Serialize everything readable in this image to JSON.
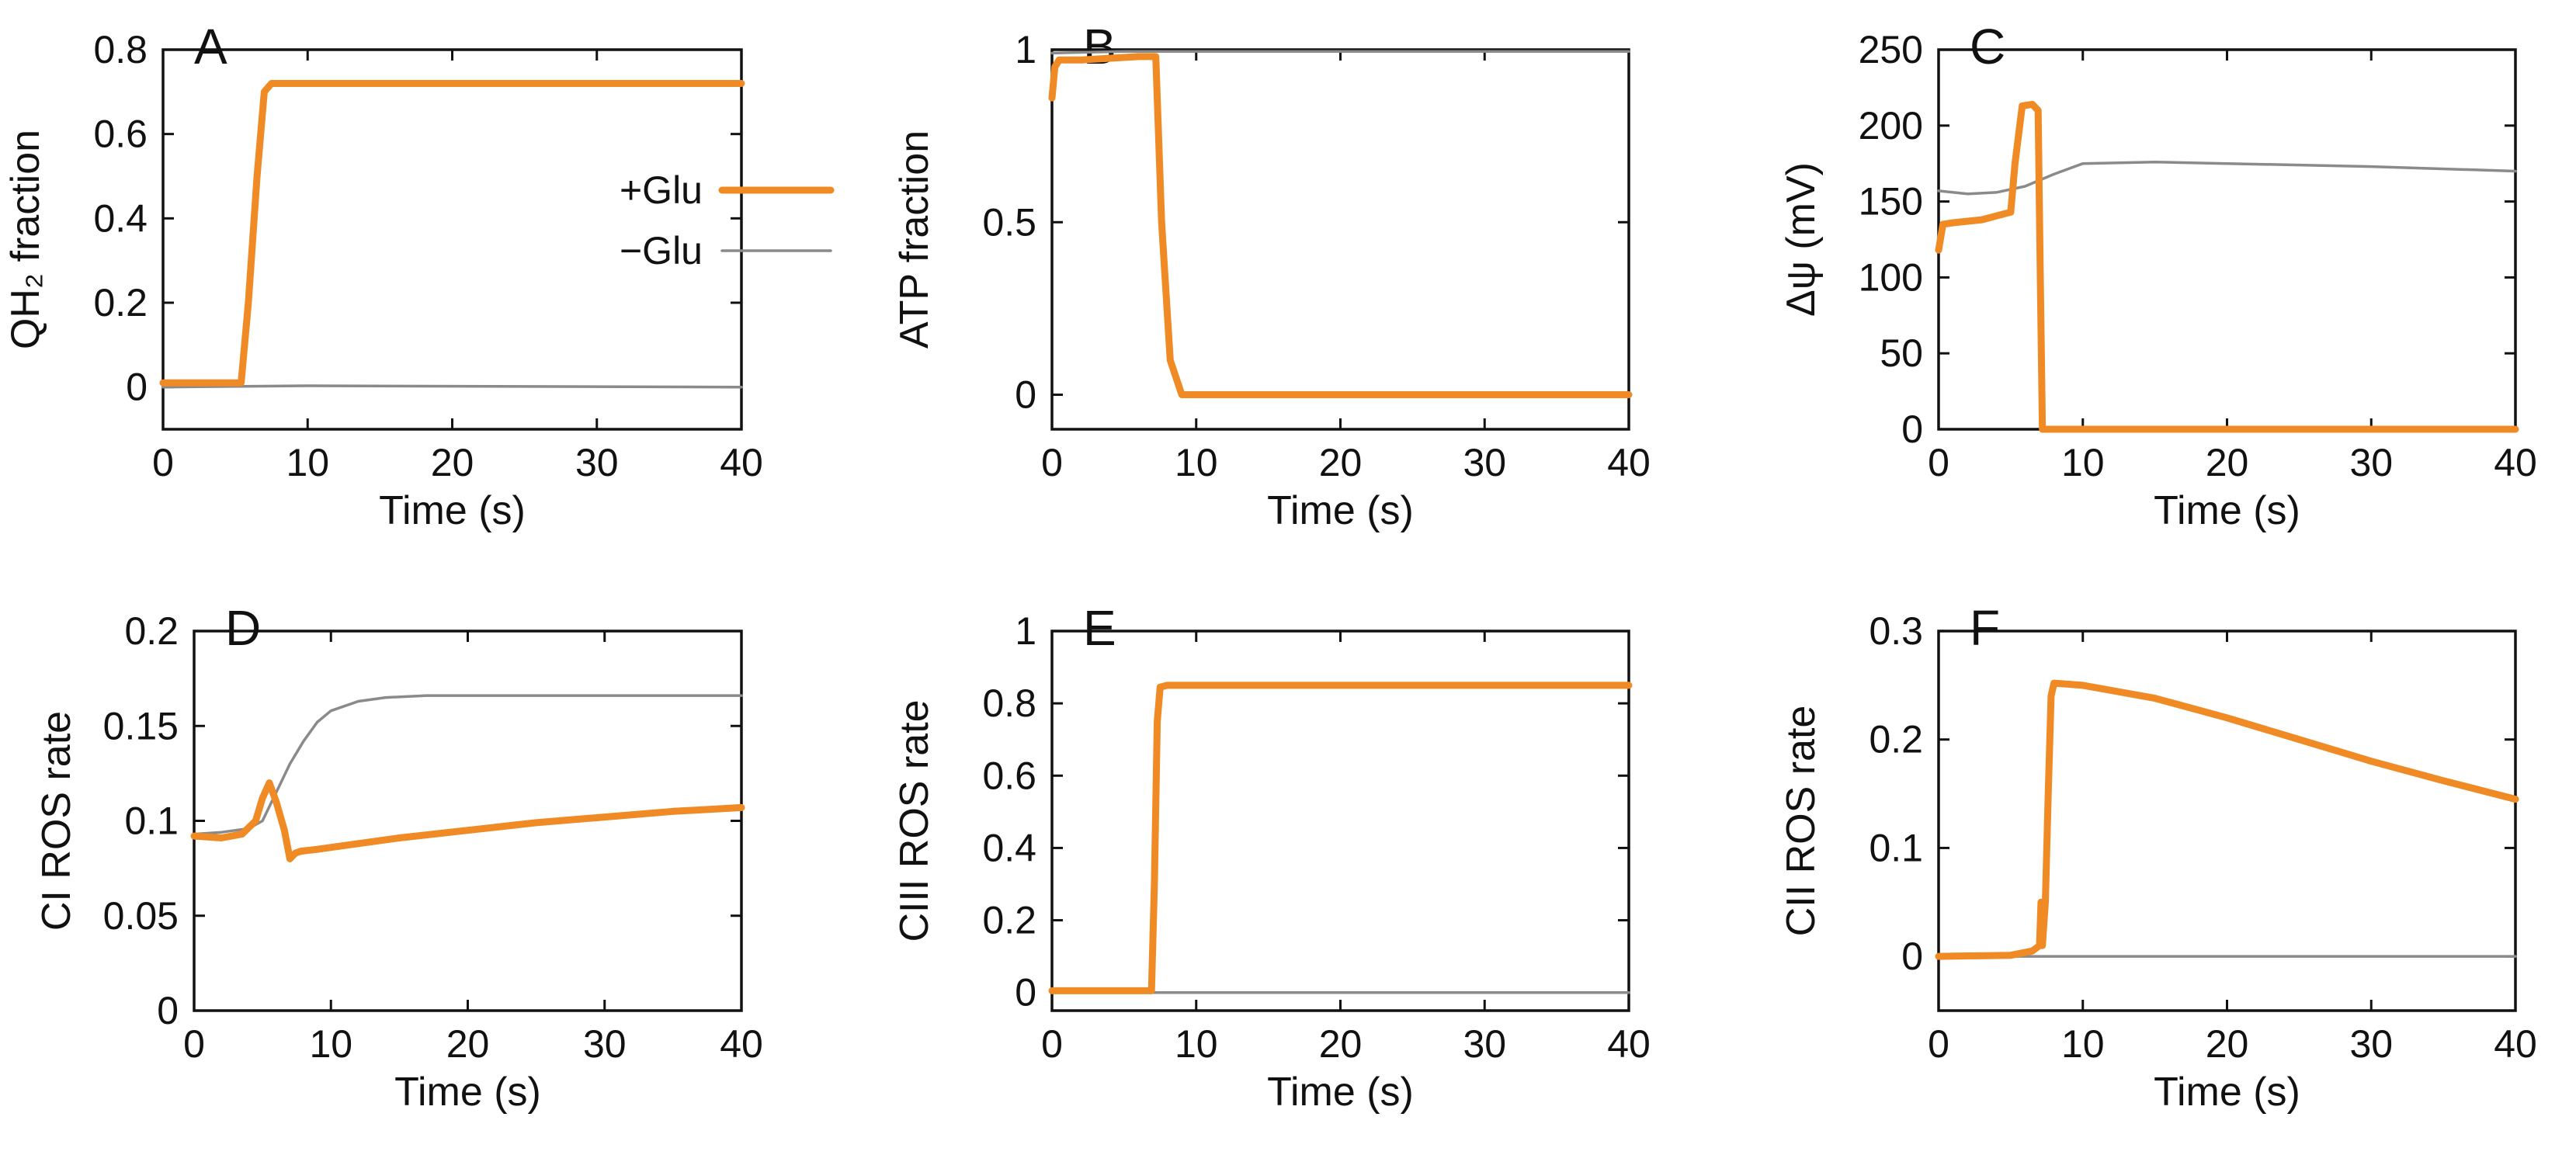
{
  "colors": {
    "glu_plus": "#f08a24",
    "glu_minus": "#8a8a8a"
  },
  "legend": {
    "glu_plus": "+Glu",
    "glu_minus": "−Glu"
  },
  "chart_data": [
    {
      "type": "line",
      "letter": "A",
      "xlabel": "Time (s)",
      "ylabel": "QH₂ fraction",
      "xlim": [
        0,
        40
      ],
      "ylim": [
        -0.1,
        0.8
      ],
      "xticks": [
        0,
        10,
        20,
        30,
        40
      ],
      "xtick_labels": [
        "0",
        "10",
        "20",
        "30",
        "40"
      ],
      "yticks": [
        0,
        0.2,
        0.4,
        0.6,
        0.8
      ],
      "ytick_labels": [
        "0",
        "0.2",
        "0.4",
        "0.6",
        "0.8"
      ],
      "series": [
        {
          "name": "+Glu",
          "x": [
            0,
            5.4,
            5.9,
            6.5,
            7,
            7.5,
            40
          ],
          "y": [
            0.01,
            0.01,
            0.2,
            0.5,
            0.7,
            0.72,
            0.72
          ]
        },
        {
          "name": "−Glu",
          "x": [
            0,
            10,
            40
          ],
          "y": [
            0.0,
            0.003,
            0.0
          ]
        }
      ]
    },
    {
      "type": "line",
      "letter": "B",
      "xlabel": "Time (s)",
      "ylabel": "ATP fraction",
      "xlim": [
        0,
        40
      ],
      "ylim": [
        -0.1,
        1.0
      ],
      "xticks": [
        0,
        10,
        20,
        30,
        40
      ],
      "xtick_labels": [
        "0",
        "10",
        "20",
        "30",
        "40"
      ],
      "yticks": [
        0,
        0.5,
        1
      ],
      "ytick_labels": [
        "0",
        "0.5",
        "1"
      ],
      "series": [
        {
          "name": "+Glu",
          "x": [
            0,
            0.2,
            0.5,
            2,
            6,
            7.2,
            7.6,
            8.2,
            9,
            10,
            40
          ],
          "y": [
            0.86,
            0.95,
            0.97,
            0.97,
            0.98,
            0.98,
            0.5,
            0.1,
            0.0,
            0.0,
            0.0
          ]
        },
        {
          "name": "−Glu",
          "x": [
            0,
            5,
            40
          ],
          "y": [
            0.99,
            0.995,
            0.995
          ]
        }
      ]
    },
    {
      "type": "line",
      "letter": "C",
      "xlabel": "Time (s)",
      "ylabel": "Δψ (mV)",
      "xlim": [
        0,
        40
      ],
      "ylim": [
        0,
        250
      ],
      "xticks": [
        0,
        10,
        20,
        30,
        40
      ],
      "xtick_labels": [
        "0",
        "10",
        "20",
        "30",
        "40"
      ],
      "yticks": [
        0,
        50,
        100,
        150,
        200,
        250
      ],
      "ytick_labels": [
        "0",
        "50",
        "100",
        "150",
        "200",
        "250"
      ],
      "series": [
        {
          "name": "+Glu",
          "x": [
            0,
            0.3,
            1,
            3,
            5,
            5.3,
            5.8,
            6.5,
            6.9,
            7.05,
            7.2,
            40
          ],
          "y": [
            118,
            135,
            136,
            138,
            143,
            175,
            213,
            214,
            210,
            100,
            0,
            0
          ]
        },
        {
          "name": "−Glu",
          "x": [
            0,
            2,
            4,
            6,
            8,
            10,
            15,
            20,
            30,
            40
          ],
          "y": [
            157,
            155,
            156,
            160,
            168,
            175,
            176,
            175,
            173,
            170
          ]
        }
      ]
    },
    {
      "type": "line",
      "letter": "D",
      "xlabel": "Time (s)",
      "ylabel": "CI ROS rate",
      "xlim": [
        0,
        40
      ],
      "ylim": [
        0,
        0.2
      ],
      "xticks": [
        0,
        10,
        20,
        30,
        40
      ],
      "xtick_labels": [
        "0",
        "10",
        "20",
        "30",
        "40"
      ],
      "yticks": [
        0,
        0.05,
        0.1,
        0.15,
        0.2
      ],
      "ytick_labels": [
        "0",
        "0.05",
        "0.1",
        "0.15",
        "0.2"
      ],
      "series": [
        {
          "name": "+Glu",
          "x": [
            0,
            2,
            3.5,
            4.5,
            5,
            5.5,
            6,
            6.6,
            7,
            7.4,
            7.8,
            9,
            12,
            15,
            20,
            25,
            30,
            35,
            40
          ],
          "y": [
            0.092,
            0.091,
            0.093,
            0.1,
            0.112,
            0.12,
            0.11,
            0.095,
            0.08,
            0.083,
            0.084,
            0.085,
            0.088,
            0.091,
            0.095,
            0.099,
            0.102,
            0.105,
            0.107
          ]
        },
        {
          "name": "−Glu",
          "x": [
            0,
            2,
            4,
            5,
            6,
            7,
            8,
            9,
            10,
            12,
            14,
            17,
            20,
            30,
            40
          ],
          "y": [
            0.093,
            0.094,
            0.096,
            0.1,
            0.115,
            0.13,
            0.142,
            0.152,
            0.158,
            0.163,
            0.165,
            0.166,
            0.166,
            0.166,
            0.166
          ]
        }
      ]
    },
    {
      "type": "line",
      "letter": "E",
      "xlabel": "Time (s)",
      "ylabel": "CIII ROS rate",
      "xlim": [
        0,
        40
      ],
      "ylim": [
        -0.05,
        1.0
      ],
      "xticks": [
        0,
        10,
        20,
        30,
        40
      ],
      "xtick_labels": [
        "0",
        "10",
        "20",
        "30",
        "40"
      ],
      "yticks": [
        0,
        0.2,
        0.4,
        0.6,
        0.8,
        1
      ],
      "ytick_labels": [
        "0",
        "0.2",
        "0.4",
        "0.6",
        "0.8",
        "1"
      ],
      "series": [
        {
          "name": "+Glu",
          "x": [
            0,
            6.9,
            7.1,
            7.3,
            7.5,
            8,
            40
          ],
          "y": [
            0.005,
            0.005,
            0.3,
            0.75,
            0.845,
            0.85,
            0.85
          ]
        },
        {
          "name": "−Glu",
          "x": [
            0,
            40
          ],
          "y": [
            0.0,
            0.0
          ]
        }
      ]
    },
    {
      "type": "line",
      "letter": "F",
      "xlabel": "Time (s)",
      "ylabel": "CII ROS rate",
      "xlim": [
        0,
        40
      ],
      "ylim": [
        -0.05,
        0.3
      ],
      "xticks": [
        0,
        10,
        20,
        30,
        40
      ],
      "xtick_labels": [
        "0",
        "10",
        "20",
        "30",
        "40"
      ],
      "yticks": [
        0,
        0.1,
        0.2,
        0.3
      ],
      "ytick_labels": [
        "0",
        "0.1",
        "0.2",
        "0.3"
      ],
      "series": [
        {
          "name": "+Glu",
          "x": [
            0,
            5,
            6.5,
            7,
            7.1,
            7.2,
            7.4,
            7.6,
            7.8,
            8,
            10,
            15,
            20,
            25,
            30,
            35,
            40
          ],
          "y": [
            0.0,
            0.001,
            0.005,
            0.01,
            0.05,
            0.01,
            0.05,
            0.15,
            0.24,
            0.252,
            0.25,
            0.238,
            0.22,
            0.2,
            0.18,
            0.162,
            0.145
          ]
        },
        {
          "name": "−Glu",
          "x": [
            0,
            40
          ],
          "y": [
            0.0,
            0.0
          ]
        }
      ]
    }
  ]
}
